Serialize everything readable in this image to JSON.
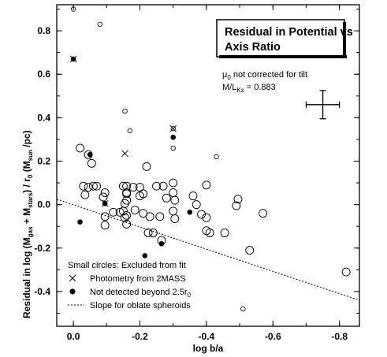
{
  "chart_data": {
    "type": "scatter",
    "title_lines": [
      "Residual in Potential vs",
      "Axis Ratio"
    ],
    "xlabel": "log b/a",
    "ylabel_parts": {
      "pre": "Residual in log (M",
      "sub1": "gas",
      "mid": " + M",
      "sub2": "stars",
      "post": ") / r",
      "sub3": "0",
      "units_pre": "  (M",
      "units_sub": "sun",
      "units_post": " /pc)"
    },
    "xlim": [
      0.05,
      -0.86
    ],
    "ylim": [
      -0.56,
      0.92
    ],
    "xticks": [
      0,
      -0.2,
      -0.4,
      -0.6,
      -0.8
    ],
    "xtick_labels": [
      "0.0",
      "-0.2",
      "-0.4",
      "-0.6",
      "-0.8"
    ],
    "yticks": [
      -0.4,
      -0.2,
      0,
      0.2,
      0.4,
      0.6,
      0.8
    ],
    "ytick_labels": [
      "-0.4",
      "-0.2",
      "0.0",
      "0.2",
      "0.4",
      "0.6",
      "0.8"
    ],
    "annotation": {
      "mu_symbol": "μ",
      "mu_sub": "0",
      "mu_text": " not corrected for tilt",
      "ml_pre": "M/L",
      "ml_sub": "Ks",
      "ml_post": " = 0.883"
    },
    "error_bar": {
      "x": -0.75,
      "y": 0.46,
      "xerr": 0.05,
      "yerr": 0.065
    },
    "slope_line": {
      "x": [
        0.05,
        -0.86
      ],
      "y": [
        0.025,
        -0.44
      ]
    },
    "legend": [
      {
        "marker": "none",
        "text": "Small circles:  Excluded from fit"
      },
      {
        "marker": "x",
        "text": "Photometry from 2MASS"
      },
      {
        "marker": "dot",
        "text_pre": "Not detected beyond 2.5r",
        "text_sub": "0"
      },
      {
        "marker": "dash",
        "text": "Slope for oblate spheroids"
      }
    ],
    "series": [
      {
        "kind": "open-large",
        "points": [
          [
            -0.02,
            0.26
          ],
          [
            -0.045,
            0.23
          ],
          [
            -0.055,
            0.19
          ],
          [
            -0.03,
            0.085
          ],
          [
            -0.045,
            0.08
          ],
          [
            -0.06,
            0.085
          ],
          [
            -0.07,
            0.085
          ],
          [
            -0.035,
            0.045
          ],
          [
            -0.095,
            0.055
          ],
          [
            -0.09,
            0.035
          ],
          [
            -0.095,
            -0.055
          ],
          [
            -0.095,
            -0.095
          ],
          [
            -0.12,
            -0.035
          ],
          [
            -0.14,
            -0.035
          ],
          [
            -0.15,
            -0.03
          ],
          [
            -0.16,
            -0.05
          ],
          [
            -0.155,
            -0.06
          ],
          [
            -0.16,
            -0.09
          ],
          [
            -0.15,
            0.085
          ],
          [
            -0.16,
            0.085
          ],
          [
            -0.16,
            0.05
          ],
          [
            -0.16,
            0.055
          ],
          [
            -0.155,
            0.005
          ],
          [
            -0.16,
            0.02
          ],
          [
            -0.18,
            0.08
          ],
          [
            -0.2,
            0.08
          ],
          [
            -0.21,
            0.05
          ],
          [
            -0.2,
            0.04
          ],
          [
            -0.185,
            -0.025
          ],
          [
            -0.21,
            -0.04
          ],
          [
            -0.22,
            0.175
          ],
          [
            -0.23,
            -0.055
          ],
          [
            -0.225,
            -0.13
          ],
          [
            -0.24,
            -0.13
          ],
          [
            -0.26,
            -0.055
          ],
          [
            -0.265,
            -0.165
          ],
          [
            -0.25,
            0.085
          ],
          [
            -0.27,
            0.085
          ],
          [
            -0.28,
            0.03
          ],
          [
            -0.3,
            0.1
          ],
          [
            -0.3,
            0.055
          ],
          [
            -0.305,
            0.02
          ],
          [
            -0.3,
            -0.03
          ],
          [
            -0.305,
            -0.065
          ],
          [
            -0.36,
            0.04
          ],
          [
            -0.37,
            0.0
          ],
          [
            -0.385,
            -0.045
          ],
          [
            -0.4,
            -0.06
          ],
          [
            -0.4,
            -0.12
          ],
          [
            -0.41,
            -0.13
          ],
          [
            -0.4,
            0.09
          ],
          [
            -0.455,
            -0.13
          ],
          [
            -0.49,
            -0.005
          ],
          [
            -0.495,
            0.025
          ],
          [
            -0.53,
            -0.21
          ],
          [
            -0.57,
            -0.04
          ],
          [
            -0.82,
            -0.31
          ]
        ]
      },
      {
        "kind": "open-small",
        "points": [
          [
            0.0,
            0.9
          ],
          [
            -0.08,
            0.83
          ],
          [
            -0.155,
            0.43
          ],
          [
            -0.17,
            0.34
          ],
          [
            -0.3,
            0.26
          ],
          [
            -0.3,
            0.35
          ],
          [
            -0.43,
            0.22
          ],
          [
            -0.51,
            -0.48
          ]
        ]
      },
      {
        "kind": "filled",
        "points": [
          [
            0.0,
            0.67
          ],
          [
            -0.05,
            0.23
          ],
          [
            -0.02,
            -0.08
          ],
          [
            -0.095,
            0.005
          ],
          [
            -0.3,
            0.31
          ],
          [
            -0.215,
            -0.235
          ],
          [
            -0.265,
            -0.18
          ],
          [
            -0.35,
            -0.035
          ]
        ]
      },
      {
        "kind": "cross",
        "points": [
          [
            0.0,
            0.67
          ],
          [
            -0.095,
            0.005
          ],
          [
            -0.155,
            0.235
          ],
          [
            -0.3,
            0.35
          ]
        ]
      }
    ]
  }
}
